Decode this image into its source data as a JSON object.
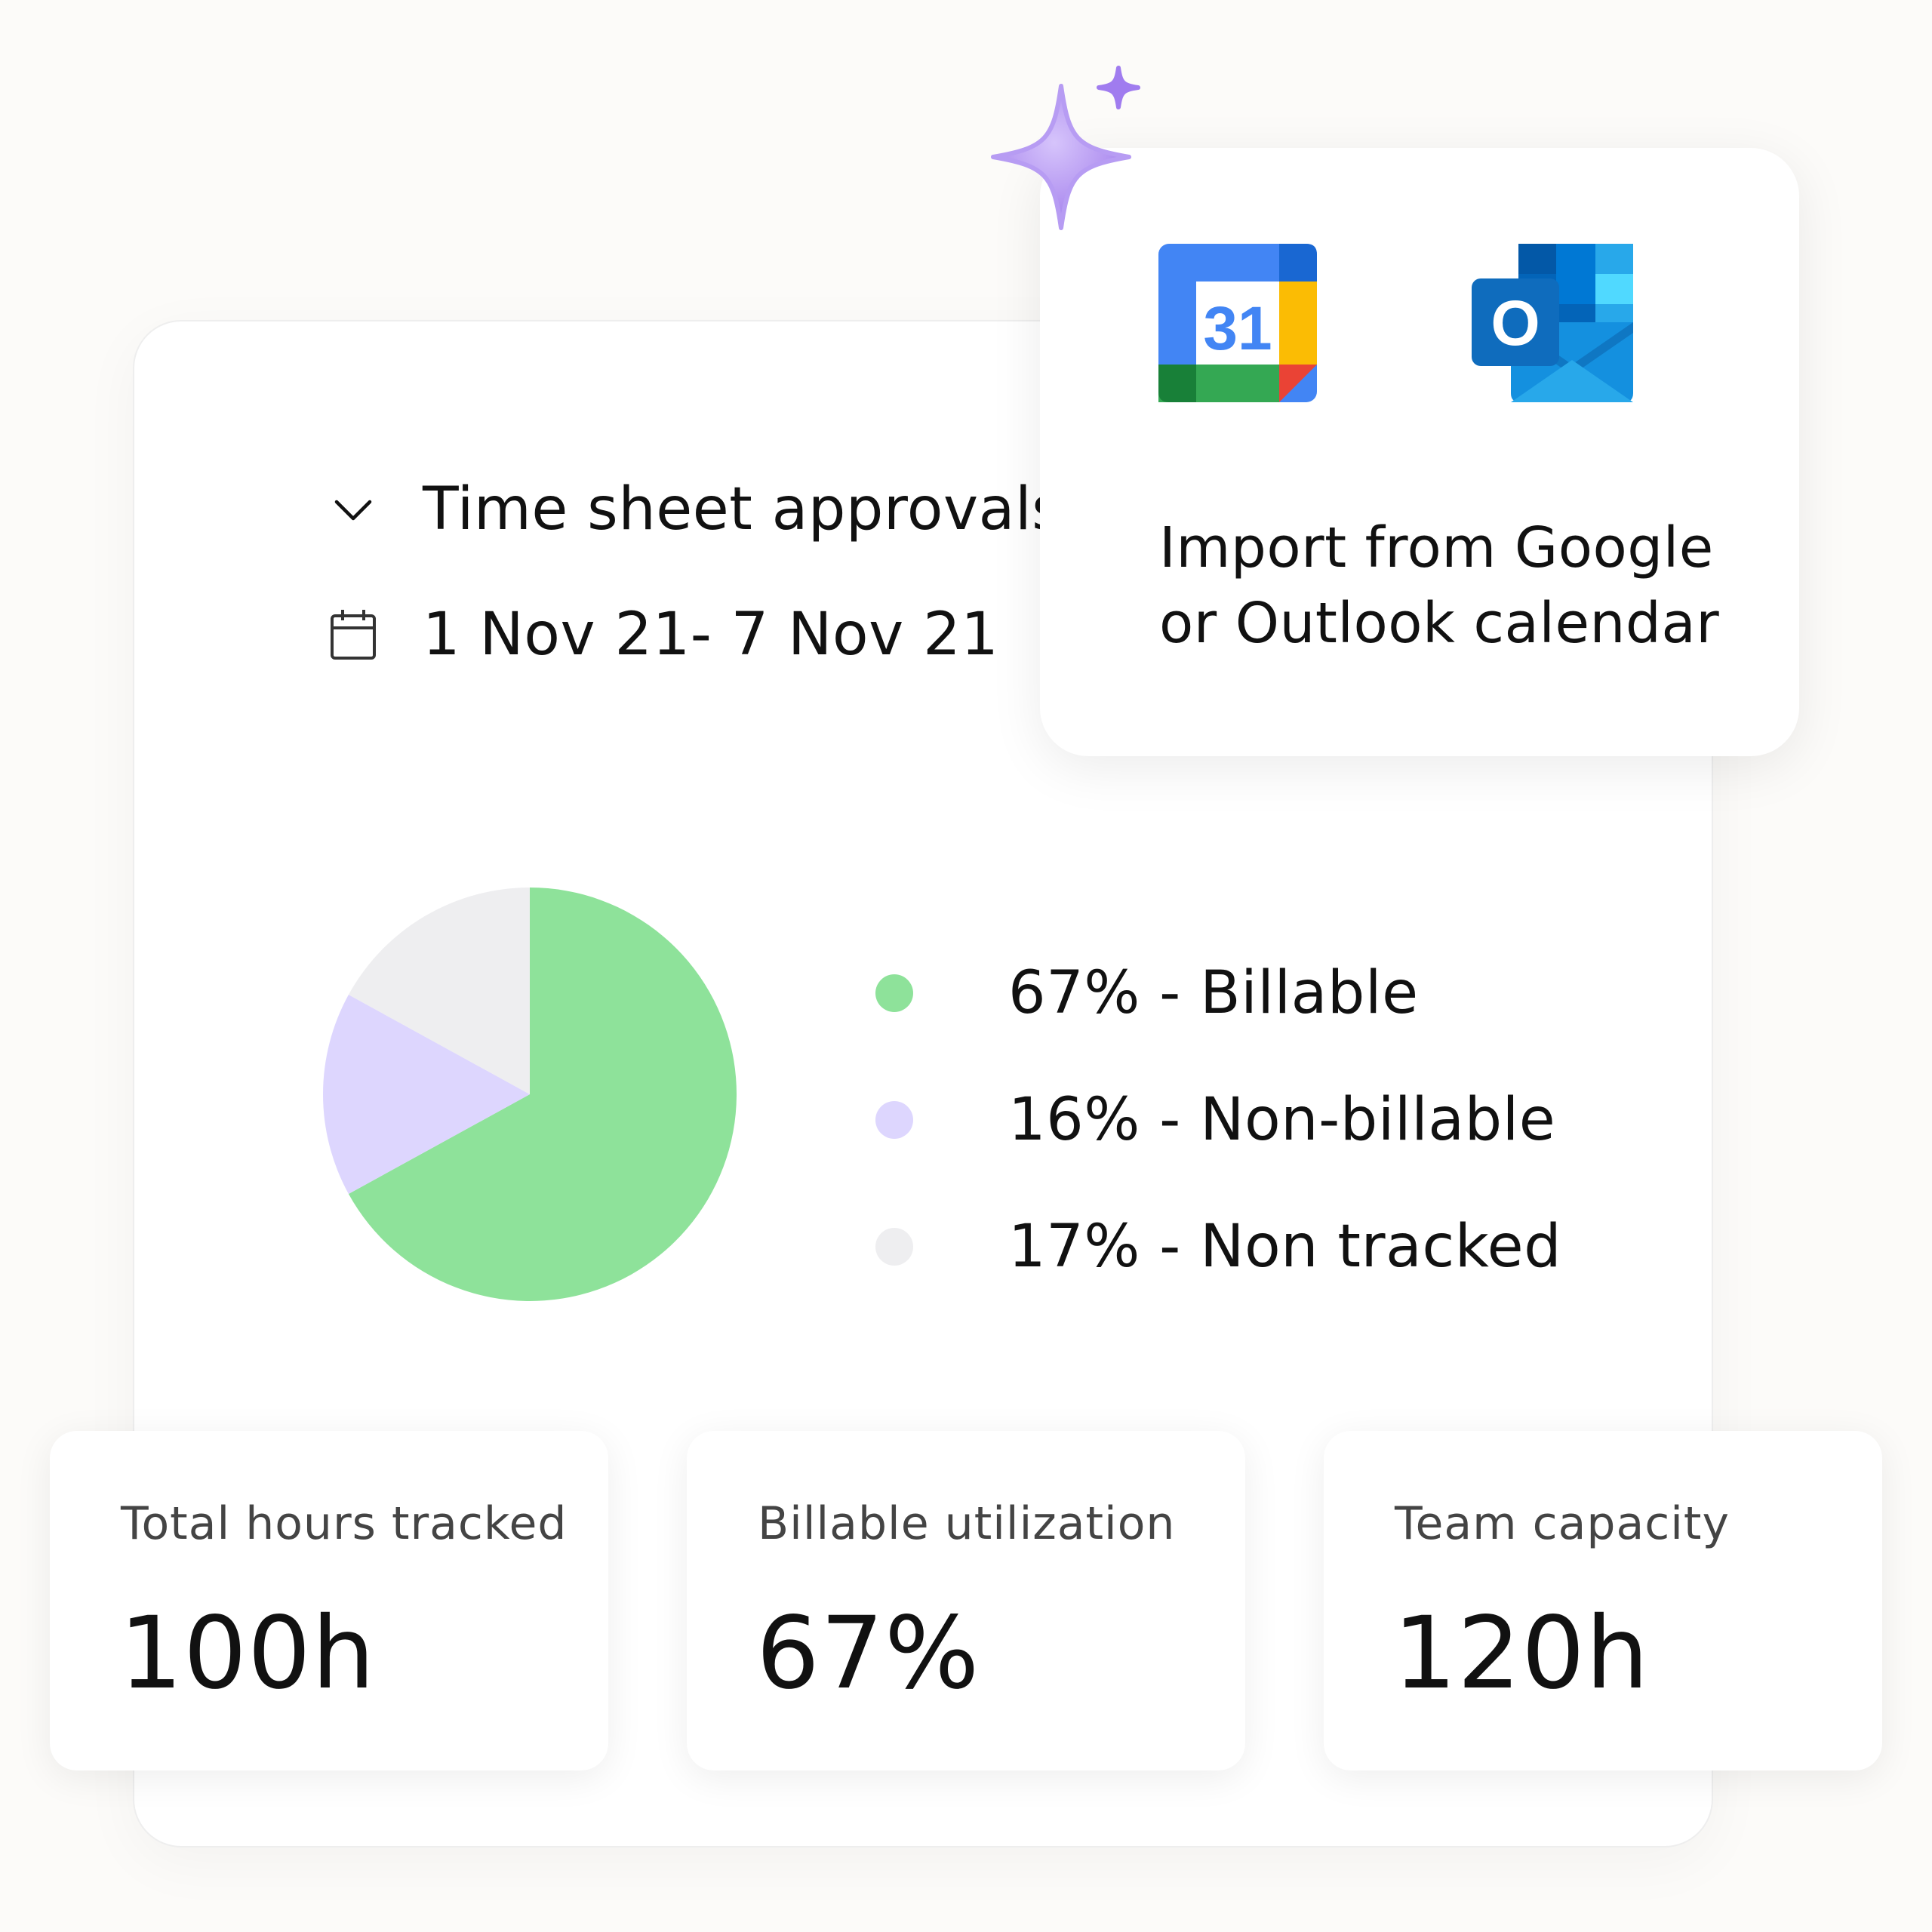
{
  "timesheet": {
    "title": "Time sheet approvals",
    "date_range": "1 Nov 21- 7 Nov 21",
    "title_icon": "chevron-down-icon",
    "date_icon": "calendar-icon"
  },
  "chart_data": {
    "type": "pie",
    "slices": [
      {
        "label": "67% - Billable",
        "value": 67,
        "color": "#8ee29a"
      },
      {
        "label": "16% - Non-billable",
        "value": 16,
        "color": "#ddd6fe"
      },
      {
        "label": "17% - Non tracked",
        "value": 17,
        "color": "#eeeef0"
      }
    ]
  },
  "import_card": {
    "line1": "Import from Google",
    "line2": "or Outlook calendar",
    "gcal_icon": "google-calendar-icon",
    "gcal_number": "31",
    "outlook_icon": "outlook-icon",
    "outlook_letter": "O",
    "sparkle_icon": "sparkle-icon"
  },
  "stats": [
    {
      "label": "Total hours tracked",
      "value": "100h"
    },
    {
      "label": "Billable utilization",
      "value": "67%"
    },
    {
      "label": "Team capacity",
      "value": "120h"
    }
  ]
}
